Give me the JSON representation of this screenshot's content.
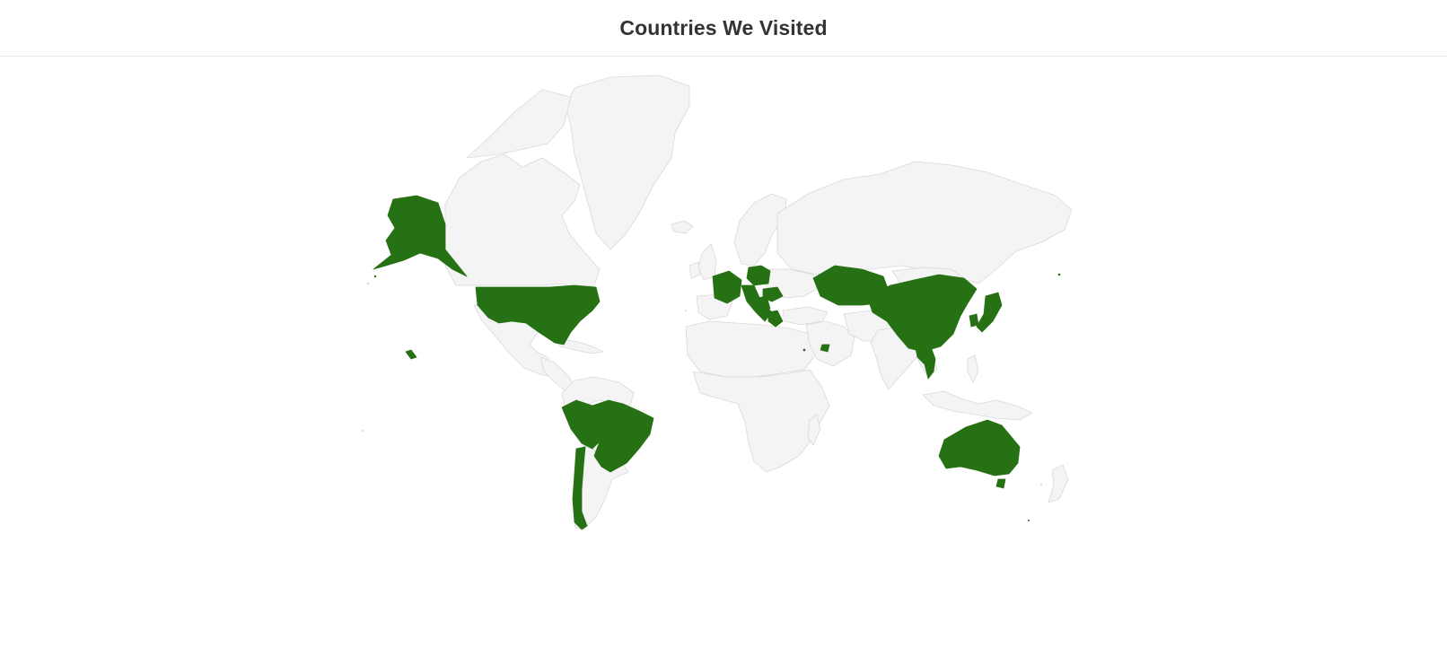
{
  "header": {
    "title": "Countries We Visited"
  },
  "colors": {
    "visited": "#277115",
    "unvisited": "#f4f4f4",
    "border": "#d9d9d9",
    "background": "#ffffff"
  },
  "map": {
    "visited_countries": [
      "United States",
      "Brazil",
      "Peru",
      "Chile",
      "Uruguay",
      "France",
      "Italy",
      "Poland",
      "Hungary",
      "Croatia",
      "Greece",
      "United Arab Emirates",
      "Kazakhstan",
      "China",
      "Vietnam",
      "South Korea",
      "Japan",
      "Australia"
    ]
  }
}
